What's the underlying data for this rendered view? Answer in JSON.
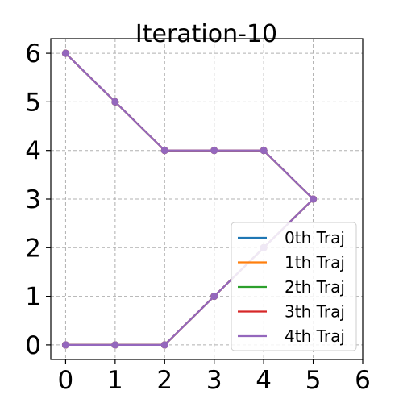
{
  "chart_data": {
    "type": "line",
    "title": "Iteration-10",
    "xlabel": "",
    "ylabel": "",
    "xlim": [
      -0.3,
      6.0
    ],
    "ylim": [
      -0.3,
      6.3
    ],
    "x_ticks": [
      0,
      1,
      2,
      3,
      4,
      5,
      6
    ],
    "y_ticks": [
      0,
      1,
      2,
      3,
      4,
      5,
      6
    ],
    "x_tick_labels": [
      "0",
      "1",
      "2",
      "3",
      "4",
      "5",
      "6"
    ],
    "y_tick_labels": [
      "0",
      "1",
      "2",
      "3",
      "4",
      "5",
      "6"
    ],
    "grid": true,
    "legend_position": "lower-right",
    "path_x": [
      0,
      1,
      2,
      3,
      4,
      5,
      4,
      3,
      2,
      1,
      0
    ],
    "path_y": [
      6,
      5,
      4,
      4,
      4,
      3,
      2,
      1,
      0,
      0,
      0
    ],
    "series": [
      {
        "name": "0th Traj",
        "color": "#1f77b4"
      },
      {
        "name": "1th Traj",
        "color": "#ff7f0e"
      },
      {
        "name": "2th Traj",
        "color": "#2ca02c"
      },
      {
        "name": "3th Traj",
        "color": "#d62728"
      },
      {
        "name": "4th Traj",
        "color": "#9467bd"
      }
    ],
    "top_series_index": 4
  }
}
